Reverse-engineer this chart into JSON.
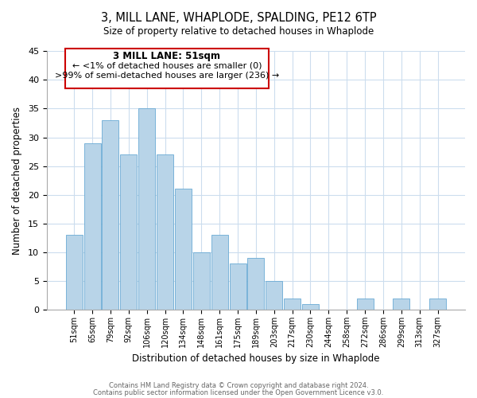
{
  "title": "3, MILL LANE, WHAPLODE, SPALDING, PE12 6TP",
  "subtitle": "Size of property relative to detached houses in Whaplode",
  "xlabel": "Distribution of detached houses by size in Whaplode",
  "ylabel": "Number of detached properties",
  "categories": [
    "51sqm",
    "65sqm",
    "79sqm",
    "92sqm",
    "106sqm",
    "120sqm",
    "134sqm",
    "148sqm",
    "161sqm",
    "175sqm",
    "189sqm",
    "203sqm",
    "217sqm",
    "230sqm",
    "244sqm",
    "258sqm",
    "272sqm",
    "286sqm",
    "299sqm",
    "313sqm",
    "327sqm"
  ],
  "values": [
    13,
    29,
    33,
    27,
    35,
    27,
    21,
    10,
    13,
    8,
    9,
    5,
    2,
    1,
    0,
    0,
    2,
    0,
    2,
    0,
    2
  ],
  "bar_color": "#b8d4e8",
  "bar_edge_color": "#6aaad4",
  "highlight_box_color": "#cc0000",
  "ylim": [
    0,
    45
  ],
  "yticks": [
    0,
    5,
    10,
    15,
    20,
    25,
    30,
    35,
    40,
    45
  ],
  "annotation_title": "3 MILL LANE: 51sqm",
  "annotation_line1": "← <1% of detached houses are smaller (0)",
  "annotation_line2": ">99% of semi-detached houses are larger (236) →",
  "footer_line1": "Contains HM Land Registry data © Crown copyright and database right 2024.",
  "footer_line2": "Contains public sector information licensed under the Open Government Licence v3.0.",
  "background_color": "#ffffff",
  "grid_color": "#ccddee"
}
